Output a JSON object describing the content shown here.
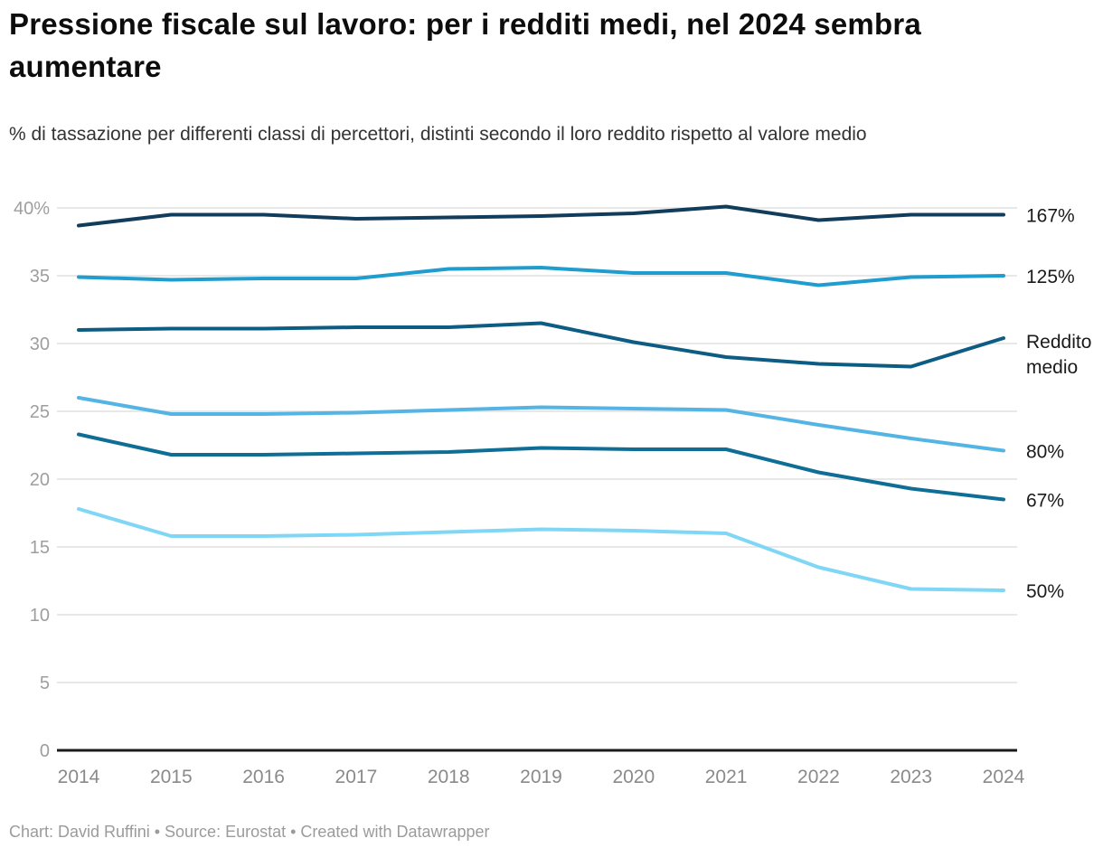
{
  "header": {
    "title": "Pressione fiscale sul lavoro: per i redditi medi, nel 2024 sembra aumentare",
    "subtitle": "% di tassazione per differenti classi di percettori, distinti secondo il loro reddito rispetto al valore medio"
  },
  "footer": {
    "text": "Chart: David Ruffini • Source: Eurostat • Created with Datawrapper"
  },
  "colors": {
    "grid": "#e8e8e8",
    "zero_axis": "#1a1a1a",
    "y_tick_label": "#9e9e9e",
    "x_tick_label": "#8a8a8a",
    "series_label": "#1a1a1a"
  },
  "chart_data": {
    "type": "line",
    "x": [
      2014,
      2015,
      2016,
      2017,
      2018,
      2019,
      2020,
      2021,
      2022,
      2023,
      2024
    ],
    "series": [
      {
        "name": "167%",
        "label": "167%",
        "color": "#113c5c",
        "values": [
          38.7,
          39.5,
          39.5,
          39.2,
          39.3,
          39.4,
          39.6,
          40.1,
          39.1,
          39.5,
          39.5
        ]
      },
      {
        "name": "125%",
        "label": "125%",
        "color": "#1f9dcf",
        "values": [
          34.9,
          34.7,
          34.8,
          34.8,
          35.5,
          35.6,
          35.2,
          35.2,
          34.3,
          34.9,
          35.0
        ]
      },
      {
        "name": "Reddito medio",
        "label": "Reddito medio",
        "label_lines": [
          "Reddito",
          "medio"
        ],
        "color": "#0d5c84",
        "values": [
          31.0,
          31.1,
          31.1,
          31.2,
          31.2,
          31.5,
          30.1,
          29.0,
          28.5,
          28.3,
          30.4
        ]
      },
      {
        "name": "80%",
        "label": "80%",
        "color": "#54b5e4",
        "values": [
          26.0,
          24.8,
          24.8,
          24.9,
          25.1,
          25.3,
          25.2,
          25.1,
          24.0,
          23.0,
          22.1
        ]
      },
      {
        "name": "67%",
        "label": "67%",
        "color": "#0e6e96",
        "values": [
          23.3,
          21.8,
          21.8,
          21.9,
          22.0,
          22.3,
          22.2,
          22.2,
          20.5,
          19.3,
          18.5
        ]
      },
      {
        "name": "50%",
        "label": "50%",
        "color": "#7fd7f5",
        "values": [
          17.8,
          15.8,
          15.8,
          15.9,
          16.1,
          16.3,
          16.2,
          16.0,
          13.5,
          11.9,
          11.8
        ]
      }
    ],
    "title": "Pressione fiscale sul lavoro: per i redditi medi, nel 2024 sembra aumentare",
    "xlabel": "",
    "ylabel": "",
    "ylim": [
      0,
      40
    ],
    "yticks": [
      0,
      5,
      10,
      15,
      20,
      25,
      30,
      35,
      40
    ],
    "ytick_labels": [
      "0",
      "5",
      "10",
      "15",
      "20",
      "25",
      "30",
      "35",
      "40%"
    ],
    "grid": true,
    "legend_position": "line-end-labels-right"
  }
}
